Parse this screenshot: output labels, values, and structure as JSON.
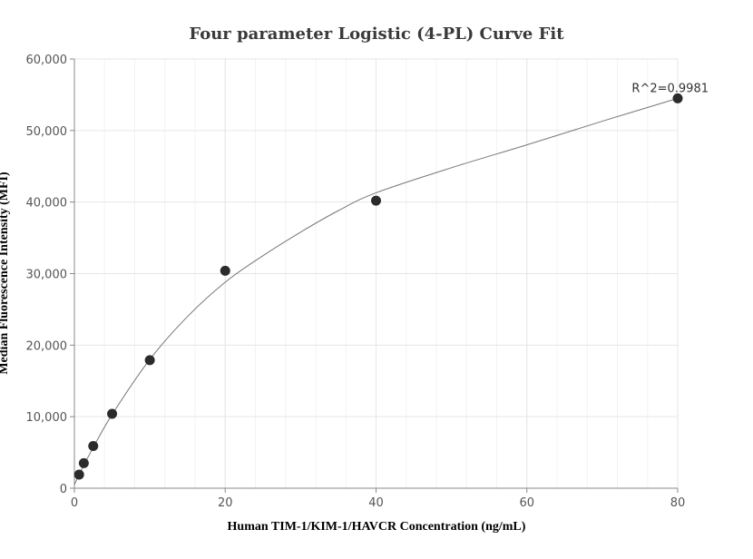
{
  "chart_data": {
    "type": "scatter",
    "title": "Four parameter Logistic (4-PL) Curve Fit",
    "xlabel": "Human TIM-1/KIM-1/HAVCR Concentration (ng/mL)",
    "ylabel": "Median Fluorescence Intensity (MFI)",
    "xlim": [
      0,
      80
    ],
    "ylim": [
      0,
      60000
    ],
    "x_ticks": [
      0,
      20,
      40,
      60,
      80
    ],
    "y_ticks": [
      0,
      10000,
      20000,
      30000,
      40000,
      50000,
      60000
    ],
    "x_tick_labels": [
      "0",
      "20",
      "40",
      "60",
      "80"
    ],
    "y_tick_labels": [
      "0",
      "10,000",
      "20,000",
      "30,000",
      "40,000",
      "50,000",
      "60,000"
    ],
    "grid": true,
    "series": [
      {
        "points": [
          {
            "x": 0.625,
            "y": 1900
          },
          {
            "x": 1.25,
            "y": 3500
          },
          {
            "x": 2.5,
            "y": 5900
          },
          {
            "x": 5,
            "y": 10400
          },
          {
            "x": 10,
            "y": 17900
          },
          {
            "x": 20,
            "y": 30400
          },
          {
            "x": 40,
            "y": 40200
          },
          {
            "x": 80,
            "y": 54500
          }
        ]
      }
    ],
    "fit_curve": {
      "type": "4PL",
      "points": [
        {
          "x": 0,
          "y": 500
        },
        {
          "x": 0.625,
          "y": 1900
        },
        {
          "x": 1.25,
          "y": 3200
        },
        {
          "x": 2.5,
          "y": 5700
        },
        {
          "x": 5,
          "y": 10300
        },
        {
          "x": 10,
          "y": 18000
        },
        {
          "x": 15,
          "y": 24000
        },
        {
          "x": 20,
          "y": 28800
        },
        {
          "x": 25,
          "y": 32500
        },
        {
          "x": 30,
          "y": 35800
        },
        {
          "x": 35,
          "y": 38800
        },
        {
          "x": 40,
          "y": 41300
        },
        {
          "x": 50,
          "y": 44800
        },
        {
          "x": 60,
          "y": 48000
        },
        {
          "x": 70,
          "y": 51300
        },
        {
          "x": 80,
          "y": 54500
        }
      ]
    },
    "annotations": [
      {
        "text": "R^2=0.9981",
        "x": 80,
        "y": 54500
      }
    ]
  }
}
